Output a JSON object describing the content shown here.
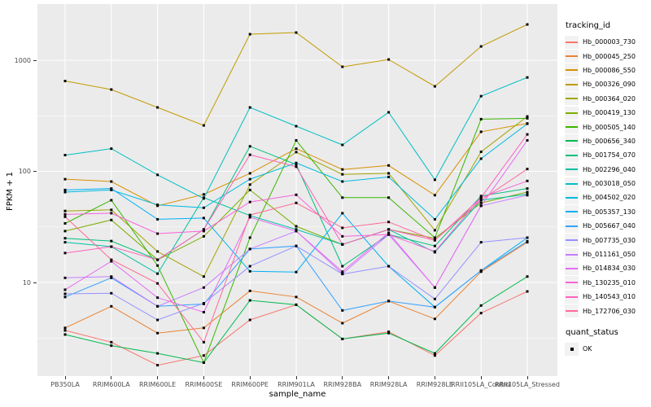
{
  "chart_data": {
    "type": "line",
    "title": "",
    "xlabel": "sample_name",
    "ylabel": "FPKM + 1",
    "y_scale": "log10",
    "ylim": [
      1.4,
      3200
    ],
    "grid": true,
    "legend_position": "right",
    "y_tick_labels": [
      "10",
      "100",
      "1000"
    ],
    "y_tick_values": [
      10,
      100,
      1000
    ],
    "y_minor_values": [
      3.162,
      31.62,
      316.2
    ],
    "categories": [
      "PB350LA",
      "RRIM600LA",
      "RRIM600LE",
      "RRIM600SE",
      "RRIM600PE",
      "RRIM901LA",
      "RRIM928BA",
      "RRIM928LA",
      "RRIM928LE",
      "RRII105LA_Control",
      "RRII105LA_Stressed"
    ],
    "color_legend_title": "tracking_id",
    "shape_legend_title": "quant_status",
    "shape_legend_entries": [
      {
        "label": "OK",
        "marker": "black-square"
      }
    ],
    "point_marker": {
      "shape": "square",
      "color": "#000000",
      "size": 3
    },
    "series": [
      {
        "name": "Hb_000003_730",
        "color": "#F8766D",
        "values": [
          3.7,
          2.9,
          1.8,
          2.2,
          4.6,
          6.3,
          3.1,
          3.6,
          2.2,
          5.3,
          8.3
        ]
      },
      {
        "name": "Hb_000045_250",
        "color": "#EA8331",
        "values": [
          3.9,
          6.1,
          3.5,
          3.9,
          8.4,
          7.4,
          4.3,
          6.8,
          4.7,
          12.5,
          23
        ]
      },
      {
        "name": "Hb_000086_550",
        "color": "#D89000",
        "values": [
          85,
          81,
          49,
          62,
          96,
          160,
          104,
          113,
          61,
          227,
          270
        ]
      },
      {
        "name": "Hb_000326_090",
        "color": "#C09B00",
        "values": [
          650,
          545,
          376,
          259,
          1715,
          1774,
          873,
          1016,
          582,
          1331,
          2099
        ]
      },
      {
        "name": "Hb_000364_020",
        "color": "#A3A500",
        "values": [
          44,
          45,
          19,
          11.3,
          76,
          149,
          94,
          96,
          29.5,
          150,
          312
        ]
      },
      {
        "name": "Hb_000419_130",
        "color": "#7CAE00",
        "values": [
          29,
          36.5,
          16,
          26,
          68,
          32,
          22,
          30,
          25,
          52,
          65
        ]
      },
      {
        "name": "Hb_000505_140",
        "color": "#39B600",
        "values": [
          34,
          55,
          14.2,
          1.9,
          25.3,
          190,
          58,
          58,
          25.3,
          295,
          300
        ]
      },
      {
        "name": "Hb_000656_340",
        "color": "#00BB4E",
        "values": [
          3.4,
          2.7,
          2.3,
          1.9,
          6.9,
          6.3,
          3.1,
          3.5,
          2.3,
          6.2,
          11.3
        ]
      },
      {
        "name": "Hb_001754_070",
        "color": "#00BF7D",
        "values": [
          25,
          23.6,
          16,
          30,
          168,
          115,
          14,
          27,
          21.3,
          60,
          70
        ]
      },
      {
        "name": "Hb_002296_040",
        "color": "#00C1A3",
        "values": [
          23,
          21,
          12,
          58,
          40,
          30,
          22,
          30,
          18.7,
          55,
          62
        ]
      },
      {
        "name": "Hb_003018_050",
        "color": "#00BFC4",
        "values": [
          140,
          160,
          93,
          57,
          376,
          255,
          173,
          340,
          84,
          475,
          700
        ]
      },
      {
        "name": "Hb_004502_020",
        "color": "#00BAE0",
        "values": [
          65,
          68,
          50,
          47,
          85,
          119,
          81,
          89,
          37,
          130,
          268
        ]
      },
      {
        "name": "Hb_005357_130",
        "color": "#00B0F6",
        "values": [
          68,
          70,
          37,
          38,
          12.6,
          12.4,
          42,
          14,
          6.0,
          12.8,
          25.3
        ]
      },
      {
        "name": "Hb_005667_040",
        "color": "#35A2FF",
        "values": [
          7.4,
          11,
          6.1,
          6.4,
          20,
          21.3,
          5.6,
          6.8,
          6.0,
          12.8,
          23.5
        ]
      },
      {
        "name": "Hb_007735_030",
        "color": "#9590FF",
        "values": [
          7.9,
          8.0,
          4.6,
          6.5,
          14,
          21.3,
          11.9,
          14,
          7.1,
          23,
          25.3
        ]
      },
      {
        "name": "Hb_011161_050",
        "color": "#C77CFF",
        "values": [
          11,
          11.3,
          6.1,
          9.0,
          20,
          29,
          12,
          27,
          9.0,
          49,
          61
        ]
      },
      {
        "name": "Hb_014834_030",
        "color": "#E76BF3",
        "values": [
          8.6,
          15.5,
          7.3,
          5.4,
          38.6,
          29,
          12.5,
          28,
          9.0,
          49,
          190
        ]
      },
      {
        "name": "Hb_130235_010",
        "color": "#FA62DB",
        "values": [
          41,
          42,
          27.5,
          29,
          53,
          61.5,
          26,
          27,
          19,
          58,
          82
        ]
      },
      {
        "name": "Hb_140543_010",
        "color": "#FF62BC",
        "values": [
          18.4,
          21,
          16,
          30,
          141,
          110,
          22,
          30,
          24,
          58,
          215
        ]
      },
      {
        "name": "Hb_172706_030",
        "color": "#FF6A98",
        "values": [
          39,
          16,
          9.8,
          2.9,
          40.5,
          52,
          31,
          35,
          24,
          55,
          105
        ]
      }
    ]
  },
  "style": {
    "panel_background": "#EBEBEB",
    "gridline_color": "#FFFFFF",
    "axis_text_color": "#4D4D4D",
    "tick_mark_color": "#333333",
    "legend_key_background": "#F2F2F2",
    "marker_color": "#000000"
  }
}
